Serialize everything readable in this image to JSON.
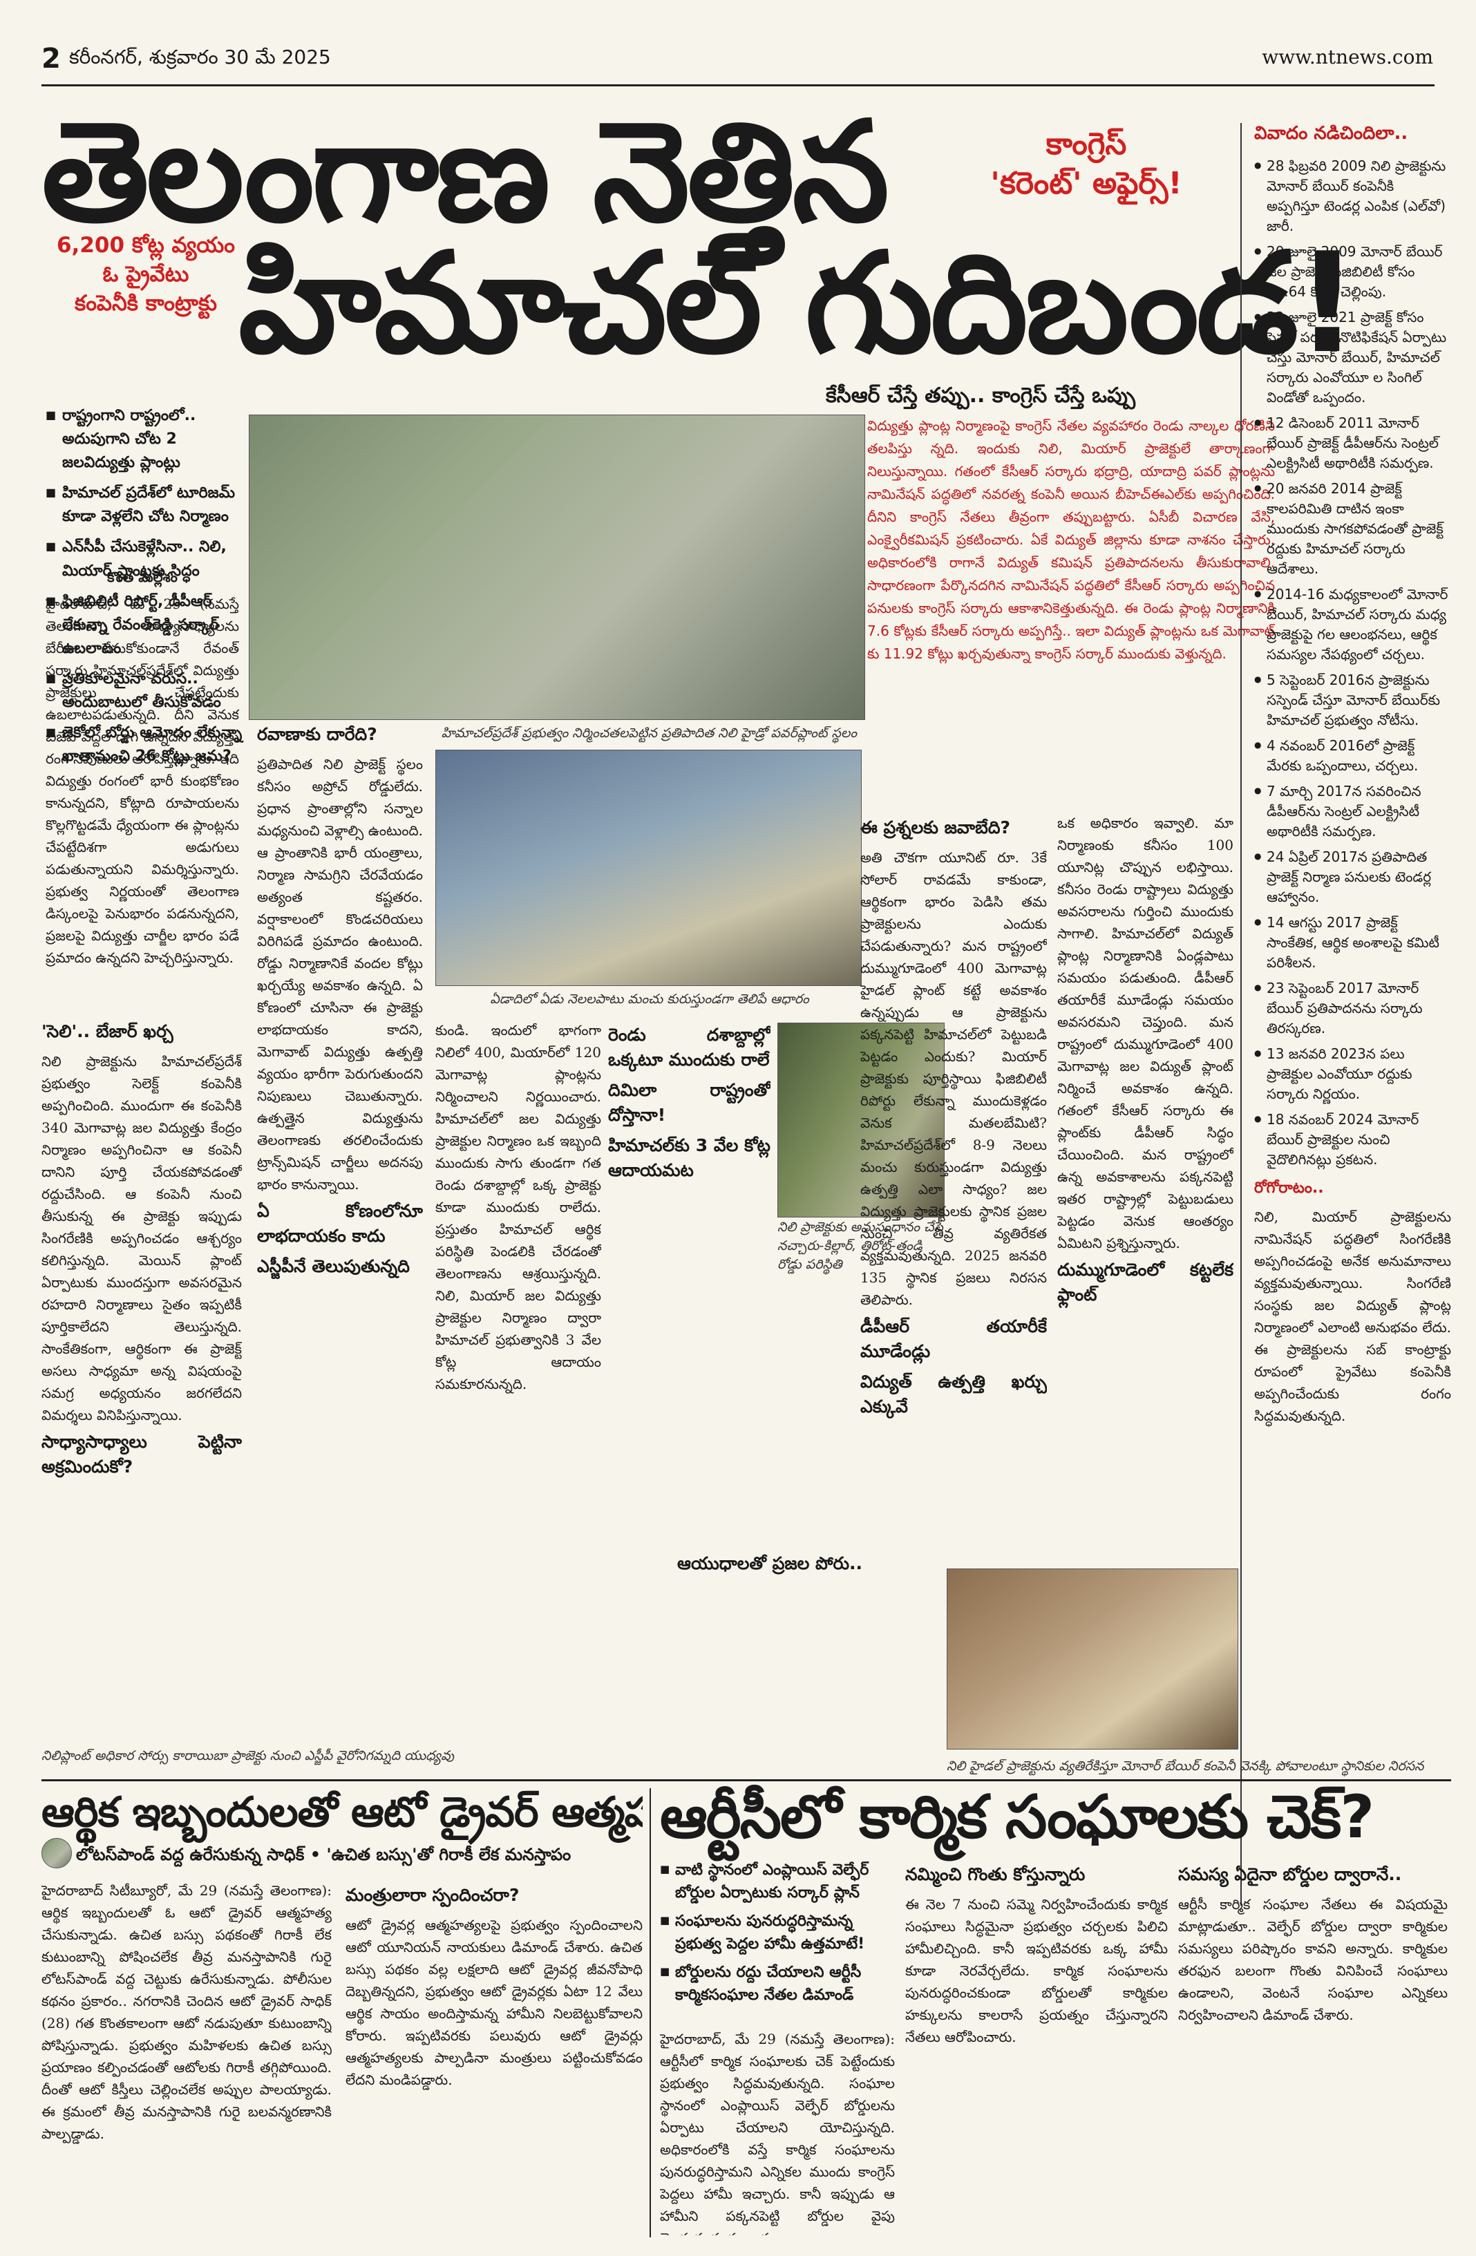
{
  "masthead": {
    "page_number": "2",
    "date": "కరీంనగర్, శుక్రవారం 30 మే 2025",
    "url": "www.ntnews.com"
  },
  "main_story": {
    "headline_line1": "తెలంగాణ నెత్తిన",
    "headline_line2": "హిమాచల్ గుదిబండ!",
    "kicker_line1": "కాంగ్రెస్",
    "kicker_line2": "'కరెంట్' అఫైర్స్!",
    "red_box": [
      "6,200 కోట్ల వ్యయం",
      "ఓ ప్రైవేటు",
      "కంపెనీకి కాంట్రాక్టు"
    ],
    "bullets": [
      "రాష్ట్రంగాని రాష్ట్రంలో.. అదుపుగాని చోట 2 జలవిద్యుత్తు ప్లాంట్లు",
      "హిమాచల్ ప్రదేశ్‌లో టూరిజమ్ కూడా వెళ్లలేని చోట నిర్మాణం",
      "ఎన్‌సీపీ చేసుకెళ్లేసినా.. నిలి, మియార్ ప్లాంట్లకు సిద్ధం",
      "ఫిజిబిలిటీ రిపోర్ట్, డీపీఆర్ లేకున్నా రేవంత్‌రెడ్డి సర్కార్ ఉబలాటం",
      "ప్రతికూలమైనా వరుస.. అందుబాటులో తీసుకోవడం",
      "జెకోలో బోర్డు ఆమోదం లేకున్నా ఖాతానుంచి 26 కోట్లు జమ?"
    ],
    "subhead": "కేసీఆర్ చేస్తే తప్పు.. కాంగ్రెస్ చేస్తే ఒప్పు",
    "red_intro": "విద్యుత్తు ప్లాంట్ల నిర్మాణంపై కాంగ్రెస్ నేతల వ్యవహారం రెండు నాల్కల ధోరణిని తలపిస్తు న్నది. ఇందుకు నిలి, మియార్ ప్రాజెక్టులే తార్కాణంగా నిలుస్తున్నాయి. గతంలో కేసీఆర్ సర్కారు భద్రాద్రి, యాదాద్రి పవర్ ప్లాంట్లను నామినేషన్ పద్ధతిలో నవరత్న కంపెనీ అయిన బీహెచ్‌ఈఎల్‌కు అప్పగించింది. దీనిని కాంగ్రెస్ నేతలు తీవ్రంగా తప్పుబట్టారు. ఏసీబీ విచారణ వేసి, ఎంక్వైరీకమిషన్ ప్రకటించారు. ఏకే విద్యుత్ జిల్లాను కూడా నాశనం చేస్తారు. అధికారంలోకి రాగానే విద్యుత్ కమిషన్ ప్రతిపాదనలను తీసుకురావాలి. సాధారణంగా పేర్కొనదగిన నామినేషన్ పద్ధతిలో కేసీఆర్ సర్కారు అప్పగించిన పనులకు కాంగ్రెస్ సర్కారు ఆకాశానికెత్తుతున్నది. ఈ రెండు ప్లాంట్ల నిర్మాణానికి 7.6 కోట్లకు కేసీఆర్ సర్కారు అప్పగిస్తే.. ఇలా విద్యుత్ ప్లాంట్లను ఒక మెగావాట్ కు 11.92 కోట్లు ఖర్చవుతున్నా కాంగ్రెస్ సర్కార్ ముందుకు వెళ్తున్నది.",
    "column1_headline": "కొంత మల్లేశం",
    "column1": "హైదరాబాద్, మే 29 (నమస్తే తెలంగాణ): సాధ్యాసాధ్యాలను బేరీజు వేసుకోకుండానే రేవంత్ సర్కారు హిమాచల్‌ప్రదేశ్‌లో విద్యుత్తు ప్రాజెక్టులు చేపట్టేందుకు ఉబలాటపడుతున్నది. దీని వెనుక బీజేపీ పెద్దల దాగి ఉన్నదని విద్యుత్తు రంగ నిపుణులు ఆరోపిస్తున్నారు. ఇది విద్యుత్తు రంగంలో భారీ కుంభకోణం కానున్నదని, కోట్లాది రూపాయలను కొల్లగొట్టడమే ధ్యేయంగా ఈ ప్లాంట్లను చేపట్టేదిశగా అడుగులు పడుతున్నాయని విమర్శిస్తున్నారు. ప్రభుత్వ నిర్ణయంతో తెలంగాణ డిస్కంలపై పెనుభారం పడనున్నదని, ప్రజలపై విద్యుత్తు చార్జీల భారం పడే ప్రమాదం ఉన్నదని హెచ్చరిస్తున్నారు.",
    "column2_headlines": [
      "'సెలి'.. బేజార్ ఖర్చ",
      "సాధ్యాసాధ్యాలు పెట్టినా అక్రమిందుకో?"
    ],
    "column2": "నిలి ప్రాజెక్టును హిమాచల్‌ప్రదేశ్ ప్రభుత్వం సెలెక్ట్ కంపెనీకి అప్పగించింది. ముందుగా ఈ కంపెనీకి 340 మెగావాట్ల జల విద్యుత్తు కేంద్రం నిర్మాణం అప్పగించినా ఆ కంపెనీ దానిని పూర్తి చేయకపోవడంతో రద్దుచేసింది. ఆ కంపెనీ నుంచి తీసుకున్న ఈ ప్రాజెక్టు ఇప్పుడు సింగరేణికి అప్పగించడం ఆశ్చర్యం కలిగిస్తున్నది. మెయిన్ ప్లాంట్ ఏర్పాటుకు ముందస్తుగా అవసరమైన రహదారి నిర్మాణాలు సైతం ఇప్పటికీ పూర్తికాలేదని తెలుస్తున్నది. సాంకేతికంగా, ఆర్థికంగా ఈ ప్రాజెక్ట్ అసలు సాధ్యమా అన్న విషయంపై సమగ్ర అధ్యయనం జరగలేదని విమర్శలు వినిపిస్తున్నాయి.",
    "column3_headlines": [
      "రవాణాకు దారేది?",
      "ఏ కోణంలోనూ లాభదాయకం కాదు",
      "ఎస్జీపీనే తెలుపుతున్నది"
    ],
    "column3": "ప్రతిపాదిత నిలి ప్రాజెక్ట్ స్థలం కనీసం అప్రోచ్ రోడ్డులేదు. ప్రధాన ప్రాంతాల్లోని సన్నాల మధ్యనుంచి వెళ్లాల్సి ఉంటుంది. ఆ ప్రాంతానికి భారీ యంత్రాలు, నిర్మాణ సామగ్రిని చేరవేయడం అత్యంత కష్టతరం. వర్షాకాలంలో కొండచరియలు విరిగిపడే ప్రమాదం ఉంటుంది. రోడ్డు నిర్మాణానికే వందల కోట్లు ఖర్చయ్యే అవకాశం ఉన్నది. ఏ కోణంలో చూసినా ఈ ప్రాజెక్టు లాభదాయకం కాదని, మెగావాట్ విద్యుత్తు ఉత్పత్తి వ్యయం భారీగా పెరుగుతుందని నిపుణులు చెబుతున్నారు. ఉత్పత్తైన విద్యుత్తును తెలంగాణకు తరలించేందుకు ట్రాన్స్‌మిషన్ చార్జీలు అదనపు భారం కానున్నాయి.",
    "photo1_caption": "హిమాచల్‌ప్రదేశ్ ప్రభుత్వం నిర్మించతలపెట్టిన ప్రతిపాదిత నిలి హైడ్రో పవర్‌ప్లాంట్ స్థలం",
    "photo2_caption": "ఏడాదిలో ఏడు నెలలపాటు మంచు కురుస్తుండగా తెలిపే ఆధారం",
    "column4_headlines": [
      "రెండు దశాబ్దాల్లో ఒక్కటూ ముందుకు రాలే",
      "దిమిలా రాష్ట్రంతో దోస్తానా!",
      "హిమాచల్‌కు 3 వేల కోట్ల ఆదాయమట"
    ],
    "column4": "కుండి. ఇందులో భాగంగా నిలిలో 400, మియార్‌లో 120 మెగావాట్ల ప్లాంట్లను నిర్మించాలని నిర్ణయించారు. హిమాచల్‌లో జల విద్యుత్తు ప్రాజెక్టుల నిర్మాణం ఒక ఇబ్బంది ముందుకు సాగు తుండగా గత రెండు దశాబ్దాల్లో ఒక్క ప్రాజెక్టు కూడా ముందుకు రాలేదు. ప్రస్తుతం హిమాచల్ ఆర్థిక పరిస్థితి పెండలికి చేరడంతో తెలంగాణను ఆశ్రయిస్తున్నది. నిలి, మియార్ జల విద్యుత్తు ప్రాజెక్టుల నిర్మాణం ద్వారా హిమాచల్ ప్రభుత్వానికి 3 వేల కోట్ల ఆదాయం సమకూరనున్నది.",
    "photo3_caption": "నిలి ప్రాజెక్టుకు అనుసంధానం చేసే నచ్చారు-కిల్లార్, తిరోట్-తండి రోడ్డు పరిస్థితి",
    "column5_headlines": [
      "ఈ ప్రశ్నలకు జవాబేది?",
      "డీపీఆర్ తయారీకే మూడేండ్లు",
      "విద్యుత్ ఉత్పత్తి ఖర్చు ఎక్కువే",
      "దుమ్ముగూడెంలో కట్టలేక ఫ్లాంట్",
      "ఆయుధాలతో ప్రజల పోరు.."
    ],
    "column5": "అతి చౌకగా యూనిట్ రూ. 3కే సోలార్ రావడమే కాకుండా, ఆర్థికంగా భారం పెడిసి తమ ప్రాజెక్టులను ఎందుకు చేపడుతున్నారు? మన రాష్ట్రంలో దుమ్ముగూడెంలో 400 మెగావాట్ల హైడల్ ప్లాంట్ కట్టే అవకాశం ఉన్నప్పుడు ఆ ప్రాజెక్టును పక్కనపెట్టి హిమాచల్‌లో పెట్టుబడి పెట్టడం ఎందుకు? మియార్ ప్రాజెక్టుకు పూర్తిస్థాయి ఫిజిబిలిటీ రిపోర్టు లేకున్నా ముందుకెళ్లడం వెనుక మతలబేమిటి? హిమాచల్‌ప్రదేశ్‌లో 8-9 నెలలు మంచు కురుస్తుండగా విద్యుత్తు ఉత్పత్తి ఎలా సాధ్యం? జల విద్యుత్తు ప్రాజెక్టులకు స్థానిక ప్రజల నుంచి తీవ్ర వ్యతిరేకత వ్యక్తమవుతున్నది. 2025 జనవరి 135 స్థానిక ప్రజలు నిరసన తెలిపారు.",
    "column6_headlines": [
      "రోగోరాటం.."
    ],
    "column6": "ఒక అధికారం ఇవ్వాలి. మా నిర్మాణంకు కనీసం 100 యూనిట్ల చొప్పున లభిస్తాయి. కనీసం రెండు రాష్ట్రాలు విద్యుత్తు అవసరాలను గుర్తించి ముందుకు సాగాలి. హిమాచల్‌లో విద్యుత్ ప్లాంట్ల నిర్మాణానికి ఏండ్లపాటు సమయం పడుతుంది. డీపీఆర్ తయారీకే మూడేండ్లు సమయం అవసరమని చెప్తుంది. మన రాష్ట్రంలో దుమ్ముగూడెంలో 400 మెగావాట్ల జల విద్యుత్ ప్లాంట్ నిర్మించే అవకాశం ఉన్నది. గతంలో కేసీఆర్ సర్కారు ఈ ప్లాంట్‌కు డీపీఆర్ సిద్ధం చేయించింది. మన రాష్ట్రంలో ఉన్న అవకాశాలను పక్కనపెట్టి ఇతర రాష్ట్రాల్లో పెట్టుబడులు పెట్టడం వెనుక ఆంతర్యం ఏమిటని ప్రశ్నిస్తున్నారు.",
    "bottom_caption_left": "నిలిప్లాంట్ అధికార సోర్సు కారాయిబా ప్రాజెక్టు నుంచి ఎస్జీపీ వైరోనిగమ్నది యుధ్యవు",
    "bottom_caption_right": "నిలి హైడల్ ప్రాజెక్టును వ్యతిరేకిస్తూ మోనార్ బేయిర్ కంపెనీ వెనక్కి పోవాలంటూ స్థానికుల నిరసన"
  },
  "sidebar": {
    "title": "వివాదం నడిచిందిలా..",
    "items": [
      "28 ఫిబ్రవరి 2009 నిలి ప్రాజెక్టును మోనార్ బేయిర్ కంపెనీకి అప్పగిస్తూ టెండర్ల ఎంపిక (ఎల్‌వో) జారీ.",
      "20 జూలై 2009 మోనార్ బేయిర్ జల ప్రాజెక్టు ఫీజిబిలిటీ కోసం రూ.64 కోట్లు చెల్లింపు.",
      "22 జూలై 2021 ప్రాజెక్ట్ కోసం సెస్టల్ పర్యస్ నొటిఫికేషన్ ఏర్పాటు చేస్తు మోనార్ బేయిర్, హిమాచల్ సర్కారు ఎంవోయూ ల సింగిల్ విండోతో ఒప్పందం.",
      "12 డిసెంబర్ 2011 మోనార్ బేయిర్ ప్రాజెక్ట్ డీపీఆర్‌ను సెంట్రల్ ఎలక్ట్రిసిటీ అథారిటీకి సమర్పణ.",
      "20 జనవరి 2014 ప్రాజెక్ట్ కాలపరిమితి దాటిన ఇంకా ముందుకు సాగకపోవడంతో ప్రాజెక్ట్ రద్దుకు హిమాచల్ సర్కారు ఆదేశాలు.",
      "2014-16 మధ్యకాలంలో మోనార్ బేయిర్, హిమాచల్ సర్కారు మధ్య ప్రాజెక్టుపై గల ఆలంభనలు, ఆర్థిక సమస్యల నేపథ్యంలో చర్చలు.",
      "5 సెప్టెంబర్ 2016న ప్రాజెక్టును సస్పెండ్ చేస్తూ మోనార్ బేయిర్‌కు హిమాచల్ ప్రభుత్వం నోటీసు.",
      "4 నవంబర్ 2016లో ప్రాజెక్ట్ మేరకు ఒప్పందాలు, చర్చలు.",
      "7 మార్చి 2017న సవరించిన డీపీఆర్‌ను సెంట్రల్ ఎలక్ట్రిసిటీ అథారిటీకి సమర్పణ.",
      "24 ఏప్రిల్ 2017న ప్రతిపాదిత ప్రాజెక్ట్ నిర్మాణ పనులకు టెండర్ల ఆహ్వానం.",
      "14 ఆగస్టు 2017 ప్రాజెక్ట్ సాంకేతిక, ఆర్థిక అంశాలపై కమిటీ పరిశీలన.",
      "23 సెప్టెంబర్ 2017 మోనార్ బేయిర్ ప్రతిపాదనను సర్కారు తిరస్కరణ.",
      "13 జనవరి 2023న పలు ప్రాజెక్టుల ఎంవోయూ రద్దుకు సర్కారు నిర్ణయం.",
      "18 నవంబర్ 2024 మోనార్ బేయిర్ ప్రాజెక్టుల నుంచి వైదొలిగినట్లు ప్రకటన."
    ],
    "subheadline": "రోగోరాటం..",
    "tail": "నిలి, మియార్ ప్రాజెక్టులను నామినేషన్ పద్ధతిలో సింగరేణికి అప్పగించడంపై అనేక అనుమానాలు వ్యక్తమవుతున్నాయి. సింగరేణి సంస్థకు జల విద్యుత్ ప్లాంట్ల నిర్మాణంలో ఎలాంటి అనుభవం లేదు. ఈ ప్రాజెక్టులను సబ్ కాంట్రాక్టు రూపంలో ప్రైవేటు కంపెనీకి అప్పగించేందుకు రంగం సిద్ధమవుతున్నది."
  },
  "bottom_left": {
    "headline": "ఆర్థిక ఇబ్బందులతో ఆటో డ్రైవర్ ఆత్మహత్య",
    "subheadline": "లోటస్‌పాండ్ వద్ద ఉరేసుకున్న సాధిక్ • 'ఉచిత బస్సు'తో గిరాకీ లేక మనస్తాపం",
    "body": "హైదరాబాద్ సిటీబ్యూరో, మే 29 (నమస్తే తెలంగాణ): ఆర్థిక ఇబ్బందులతో ఓ ఆటో డ్రైవర్ ఆత్మహత్య చేసుకున్నాడు. ఉచిత బస్సు పథకంతో గిరాకీ లేక కుటుంబాన్ని పోషించలేక తీవ్ర మనస్తాపానికి గురై లోటస్‌పాండ్ వద్ద చెట్టుకు ఉరేసుకున్నాడు. పోలీసుల కథనం ప్రకారం.. నగరానికి చెందిన ఆటో డ్రైవర్ సాధిక్ (28) గత కొంతకాలంగా ఆటో నడుపుతూ కుటుంబాన్ని పోషిస్తున్నాడు. ప్రభుత్వం మహిళలకు ఉచిత బస్సు ప్రయాణం కల్పించడంతో ఆటోలకు గిరాకీ తగ్గిపోయింది. దీంతో ఆటో కిస్తీలు చెల్లించలేక అప్పుల పాలయ్యాడు. ఈ క్రమంలో తీవ్ర మనస్తాపానికి గురై బలవన్మరణానికి పాల్పడ్డాడు.",
    "body_col2_heading": "మంత్రులారా స్పందించరా?",
    "body_col2": "ఆటో డ్రైవర్ల ఆత్మహత్యలపై ప్రభుత్వం స్పందించాలని ఆటో యూనియన్ నాయకులు డిమాండ్ చేశారు. ఉచిత బస్సు పథకం వల్ల లక్షలాది ఆటో డ్రైవర్ల జీవనోపాధి దెబ్బతిన్నదని, ప్రభుత్వం ఆటో డ్రైవర్లకు ఏటా 12 వేలు ఆర్థిక సాయం అందిస్తామన్న హామీని నిలబెట్టుకోవాలని కోరారు. ఇప్పటివరకు పలువురు ఆటో డ్రైవర్లు ఆత్మహత్యలకు పాల్పడినా మంత్రులు పట్టించుకోవడం లేదని మండిపడ్డారు."
  },
  "bottom_right": {
    "headline": "ఆర్టీసీలో కార్మిక సంఘాలకు చెక్?",
    "bullets": [
      "వాటి స్థానంలో ఎంప్లాయిస్ వెల్ఫేర్ బోర్డుల ఏర్పాటుకు సర్కార్ ప్లాన్",
      "సంఘాలను పునరుద్ధరిస్తామన్న ప్రభుత్వ పెద్దల హామీ ఉత్తమాటే!",
      "బోర్డులను రద్దు చేయాలని ఆర్టీసీ కార్మికసంఘాల నేతల డిమాండ్"
    ],
    "body": "హైదరాబాద్, మే 29 (నమస్తే తెలంగాణ): ఆర్టీసీలో కార్మిక సంఘాలకు చెక్ పెట్టేందుకు ప్రభుత్వం సిద్ధమవుతున్నది. సంఘాల స్థానంలో ఎంప్లాయిస్ వెల్ఫేర్ బోర్డులను ఏర్పాటు చేయాలని యోచిస్తున్నది. అధికారంలోకి వస్తే కార్మిక సంఘాలను పునరుద్ధరిస్తామని ఎన్నికల ముందు కాంగ్రెస్ పెద్దలు హామీ ఇచ్చారు. కానీ ఇప్పుడు ఆ హామీని పక్కనపెట్టి బోర్డుల వైపు మొగ్గుచూపుతున్నారు.",
    "body_col2_heading": "నమ్మించి గొంతు కోస్తున్నారు",
    "body_col2": "ఈ నెల 7 నుంచి సమ్మె నిర్వహించేందుకు కార్మిక సంఘాలు సిద్ధమైనా ప్రభుత్వం చర్చలకు పిలిచి హామీలిచ్చింది. కానీ ఇప్పటివరకు ఒక్క హామీ కూడా నెరవేర్చలేదు. కార్మిక సంఘాలను పునరుద్ధరించకుండా బోర్డులతో కార్మికుల హక్కులను కాలరాసే ప్రయత్నం చేస్తున్నారని నేతలు ఆరోపించారు.",
    "body_col3_heading": "సమస్య ఏదైనా బోర్డుల ద్వారానే..",
    "body_col3": "ఆర్టీసీ కార్మిక సంఘాల నేతలు ఈ విషయమై మాట్లాడుతూ.. వెల్ఫేర్ బోర్డుల ద్వారా కార్మికుల సమస్యలు పరిష్కారం కావని అన్నారు. కార్మికుల తరఫున బలంగా గొంతు వినిపించే సంఘాలు ఉండాలని, వెంటనే సంఘాల ఎన్నికలు నిర్వహించాలని డిమాండ్ చేశారు."
  }
}
